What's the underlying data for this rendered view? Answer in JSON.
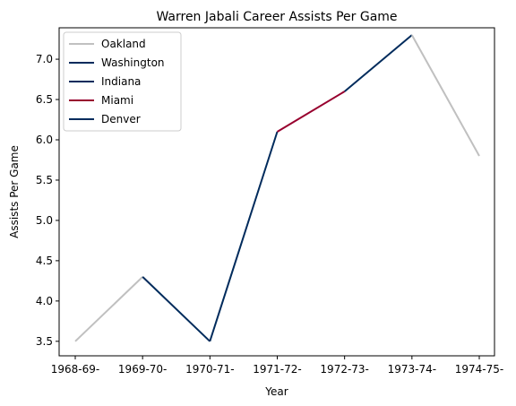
{
  "chart_data": {
    "type": "line",
    "title": "Warren Jabali Career Assists Per Game",
    "xlabel": "Year",
    "ylabel": "Assists Per Game",
    "categories": [
      "1968-69-",
      "1969-70-",
      "1970-71-",
      "1971-72-",
      "1972-73-",
      "1973-74-",
      "1974-75-"
    ],
    "ylim": [
      3.32,
      7.39
    ],
    "yticks": [
      "3.5",
      "4.0",
      "4.5",
      "5.0",
      "5.5",
      "6.0",
      "6.5",
      "7.0"
    ],
    "grid": false,
    "legend_position": "top-left",
    "series": [
      {
        "name": "Oakland",
        "color": "#c0c0c0",
        "points": [
          {
            "x": "1968-69-",
            "y": 3.5
          },
          {
            "x": "1969-70-",
            "y": 4.3
          }
        ]
      },
      {
        "name": "Washington",
        "color": "#002b5c",
        "points": [
          {
            "x": "1969-70-",
            "y": 4.3
          },
          {
            "x": "1970-71-",
            "y": 3.5
          }
        ]
      },
      {
        "name": "Indiana",
        "color": "#002b5c",
        "points": [
          {
            "x": "1970-71-",
            "y": 3.5
          },
          {
            "x": "1971-72-",
            "y": 6.1
          }
        ]
      },
      {
        "name": "Miami",
        "color": "#98002e",
        "points": [
          {
            "x": "1971-72-",
            "y": 6.1
          },
          {
            "x": "1972-73-",
            "y": 6.6
          }
        ]
      },
      {
        "name": "Denver",
        "color": "#002b5c",
        "points": [
          {
            "x": "1972-73-",
            "y": 6.6
          },
          {
            "x": "1973-74-",
            "y": 7.3
          }
        ]
      },
      {
        "name": "",
        "color": "#c0c0c0",
        "points": [
          {
            "x": "1973-74-",
            "y": 7.3
          },
          {
            "x": "1974-75-",
            "y": 5.8
          }
        ]
      }
    ]
  }
}
